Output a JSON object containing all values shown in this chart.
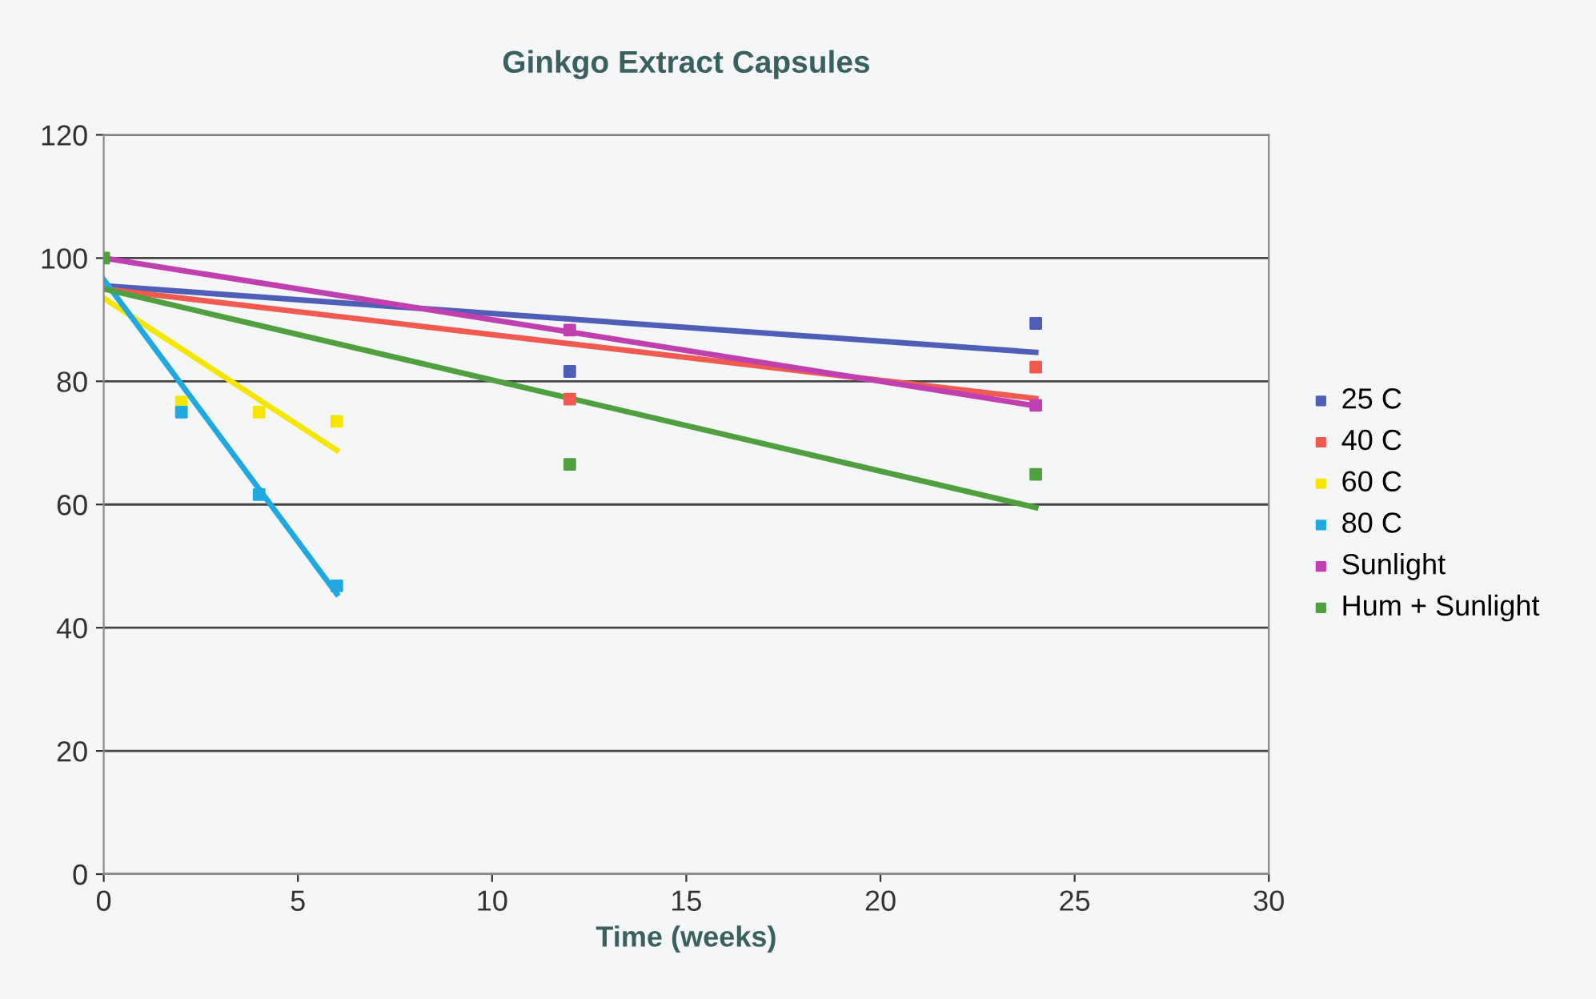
{
  "chart_data": {
    "type": "scatter",
    "title": "Ginkgo Extract Capsules",
    "xlabel": "Time (weeks)",
    "marker": "square",
    "grid": "y",
    "legend": "right",
    "xlim": [
      0,
      30
    ],
    "xticks": [
      0,
      5,
      10,
      15,
      20,
      25,
      30
    ],
    "ylim": [
      0,
      120
    ],
    "yticks": [
      0,
      20,
      40,
      60,
      80,
      100,
      120
    ],
    "series": [
      {
        "name": "25 C",
        "color": "#4f5fb8",
        "x": [
          12,
          24
        ],
        "values": [
          81.6,
          89.4
        ]
      },
      {
        "name": "40 C",
        "color": "#f05a50",
        "x": [
          12,
          24
        ],
        "values": [
          77.1,
          82.3
        ]
      },
      {
        "name": "60 C",
        "color": "#f5e600",
        "x": [
          2,
          4,
          6
        ],
        "values": [
          76.6,
          75,
          73.5
        ]
      },
      {
        "name": "80 C",
        "color": "#20a8e0",
        "x": [
          2,
          4,
          6
        ],
        "values": [
          75,
          61.6,
          46.8
        ]
      },
      {
        "name": "Sunlight",
        "color": "#c040b0",
        "x": [
          12,
          24
        ],
        "values": [
          88.3,
          76.1
        ]
      },
      {
        "name": "Hum + Sunlight",
        "color": "#50a040",
        "x": [
          0,
          12,
          24
        ],
        "values": [
          100,
          66.5,
          64.9
        ]
      },
      {
        "type": "line",
        "marker": "none",
        "color": "#4f5fb8",
        "x": [
          0,
          24
        ],
        "values": [
          95.5,
          84.7
        ]
      },
      {
        "type": "line",
        "marker": "none",
        "color": "#f05a50",
        "x": [
          0,
          24
        ],
        "values": [
          95,
          77.2
        ]
      },
      {
        "type": "line",
        "marker": "none",
        "color": "#f5e600",
        "x": [
          0,
          6
        ],
        "values": [
          93.5,
          68.8
        ]
      },
      {
        "type": "line",
        "marker": "none",
        "color": "#20a8e0",
        "x": [
          0,
          6
        ],
        "values": [
          96.5,
          45.5
        ]
      },
      {
        "type": "line",
        "marker": "none",
        "color": "#c040b0",
        "x": [
          0,
          24
        ],
        "values": [
          100,
          76
        ]
      },
      {
        "type": "line",
        "marker": "none",
        "color": "#50a040",
        "x": [
          0,
          24
        ],
        "values": [
          95,
          59.5
        ]
      }
    ]
  }
}
